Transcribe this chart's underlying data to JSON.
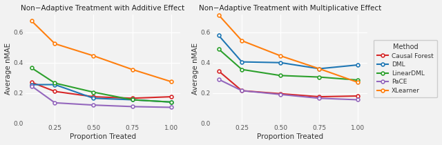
{
  "x": [
    0.1,
    0.25,
    0.5,
    0.75,
    1.0
  ],
  "additive": {
    "CausalForest": [
      0.27,
      0.21,
      0.175,
      0.165,
      0.175
    ],
    "DML": [
      0.255,
      0.255,
      0.165,
      0.155,
      0.14
    ],
    "LinearDML": [
      0.365,
      0.265,
      0.205,
      0.155,
      0.14
    ],
    "PaCE": [
      0.245,
      0.135,
      0.12,
      0.11,
      0.105
    ],
    "XLearner": [
      0.675,
      0.525,
      0.445,
      0.355,
      0.275
    ]
  },
  "multiplicative": {
    "CausalForest": [
      0.345,
      0.215,
      0.195,
      0.175,
      0.18
    ],
    "DML": [
      0.58,
      0.405,
      0.4,
      0.36,
      0.385
    ],
    "LinearDML": [
      0.49,
      0.355,
      0.315,
      0.305,
      0.285
    ],
    "PaCE": [
      0.29,
      0.215,
      0.19,
      0.165,
      0.155
    ],
    "XLearner": [
      0.715,
      0.545,
      0.445,
      0.36,
      0.27
    ]
  },
  "colors": {
    "CausalForest": "#d62728",
    "DML": "#1f77b4",
    "LinearDML": "#2ca02c",
    "PaCE": "#9467bd",
    "XLearner": "#ff7f0e"
  },
  "labels": {
    "CausalForest": "Causal Forest",
    "DML": "DML",
    "LinearDML": "LinearDML",
    "PaCE": "PaCE",
    "XLearner": "XLearner"
  },
  "title_additive": "Non−Adaptive Treatment with Additive Effect",
  "title_multiplicative": "Non−Adaptive Treatment with Multiplicative Effect",
  "xlabel": "Proportion Treated",
  "ylabel": "Average nMAE",
  "ylim": [
    0.0,
    0.72
  ],
  "yticks": [
    0.0,
    0.2,
    0.4,
    0.6
  ],
  "xticks": [
    0.25,
    0.5,
    0.75,
    1.0
  ],
  "xlim_left": 0.06,
  "xlim_right": 1.06,
  "background_color": "#f2f2f2",
  "grid_color": "#ffffff"
}
